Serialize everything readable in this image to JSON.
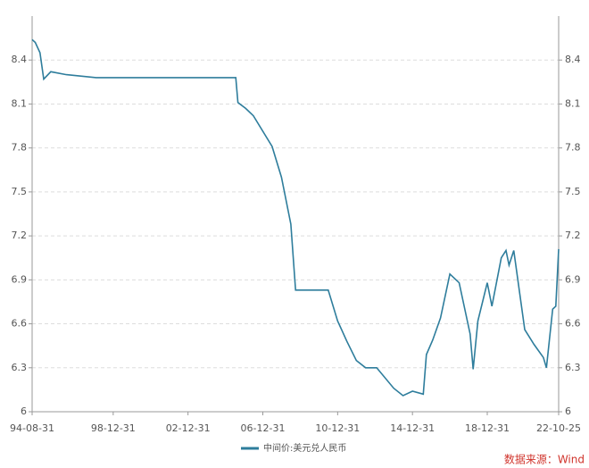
{
  "chart_data": {
    "type": "line",
    "x": [
      "94-08-31",
      "94-10-31",
      "95-01-31",
      "95-04-15",
      "95-08-31",
      "96-06-30",
      "98-01-31",
      "05-07-20",
      "05-08-31",
      "06-01-31",
      "06-06-30",
      "07-06-30",
      "07-12-31",
      "08-06-30",
      "08-09-30",
      "10-06-30",
      "10-12-31",
      "11-06-30",
      "11-12-31",
      "12-06-30",
      "13-01-31",
      "13-12-31",
      "14-06-30",
      "14-12-31",
      "15-07-31",
      "15-09-30",
      "16-01-31",
      "16-06-30",
      "16-12-31",
      "17-06-30",
      "18-01-31",
      "18-03-31",
      "18-06-30",
      "18-12-31",
      "19-03-31",
      "19-09-30",
      "19-12-31",
      "20-02-29",
      "20-05-31",
      "20-12-31",
      "21-06-30",
      "21-12-31",
      "22-02-28",
      "22-06-30",
      "22-08-31",
      "22-10-25"
    ],
    "series": [
      {
        "name": "中间价:美元兑人民币",
        "color": "#2e7d9c",
        "values": [
          8.54,
          8.52,
          8.45,
          8.27,
          8.32,
          8.3,
          8.28,
          8.28,
          8.11,
          8.07,
          8.02,
          7.81,
          7.6,
          7.28,
          6.83,
          6.83,
          6.62,
          6.48,
          6.35,
          6.3,
          6.3,
          6.16,
          6.11,
          6.14,
          6.12,
          6.39,
          6.49,
          6.64,
          6.94,
          6.88,
          6.53,
          6.29,
          6.62,
          6.88,
          6.72,
          7.05,
          7.1,
          7.0,
          7.1,
          6.56,
          6.46,
          6.37,
          6.3,
          6.7,
          6.72,
          7.11
        ]
      }
    ],
    "xticks": [
      "94-08-31",
      "98-12-31",
      "02-12-31",
      "06-12-31",
      "10-12-31",
      "14-12-31",
      "18-12-31",
      "22-10-25"
    ],
    "ylim": [
      6,
      8.7
    ],
    "yticks": [
      6,
      6.3,
      6.6,
      6.9,
      7.2,
      7.5,
      7.8,
      8.1,
      8.4
    ],
    "y2lim": [
      6,
      8.7
    ],
    "y2ticks": [
      6,
      6.3,
      6.6,
      6.9,
      7.2,
      7.5,
      7.8,
      8.1,
      8.4
    ],
    "grid": true,
    "source": "数据来源：Wind"
  }
}
